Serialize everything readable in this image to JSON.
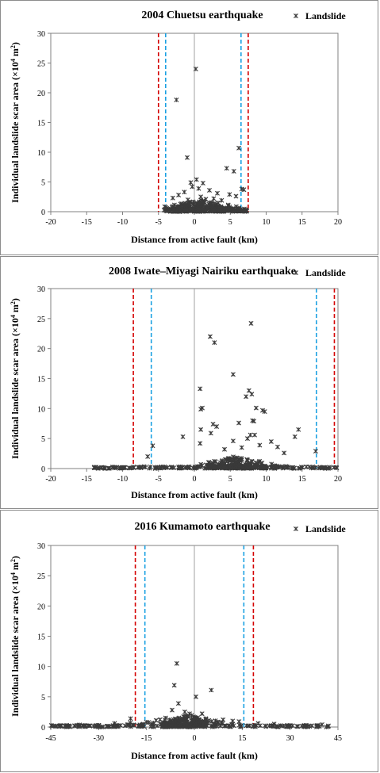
{
  "legend_label": "Landslide",
  "y_label_main": "Individual landslide scar area (×10",
  "y_label_exp": "4",
  "y_label_unit": " m",
  "y_label_exp2": "2",
  "y_label_end": ")",
  "xlabel": "Distance from active fault (km)",
  "colors": {
    "red_line": "#d40000",
    "blue_line": "#1ba1e2",
    "marker": "#3a3a3a",
    "axis": "#808080"
  },
  "chart_data": [
    {
      "type": "scatter",
      "title": "2004 Chuetsu earthquake",
      "xlabel": "Distance from active fault (km)",
      "ylabel": "Individual landslide scar area (×10^4 m^2)",
      "xlim": [
        -20,
        20
      ],
      "ylim": [
        0,
        30
      ],
      "xticks": [
        -20,
        -15,
        -10,
        -5,
        0,
        5,
        10,
        15,
        20
      ],
      "xtick_labels": [
        "-20",
        "-15",
        "-10",
        "-5",
        "0",
        "5",
        "10",
        "15",
        "20"
      ],
      "yticks": [
        0,
        5,
        10,
        15,
        20,
        25,
        30
      ],
      "red_lines": [
        -5,
        7.5
      ],
      "blue_lines": [
        -4,
        6.5
      ],
      "series": [
        {
          "name": "Landslide",
          "points": [
            [
              0.2,
              24.0
            ],
            [
              -2.5,
              18.8
            ],
            [
              6.2,
              10.7
            ],
            [
              -1.0,
              9.1
            ],
            [
              4.5,
              7.3
            ],
            [
              5.5,
              6.8
            ],
            [
              0.3,
              5.4
            ],
            [
              -0.5,
              4.9
            ],
            [
              1.2,
              4.8
            ],
            [
              6.6,
              3.8
            ],
            [
              6.9,
              3.7
            ],
            [
              -0.3,
              4.2
            ],
            [
              0.6,
              3.9
            ],
            [
              2.1,
              3.6
            ],
            [
              -1.4,
              3.3
            ],
            [
              3.2,
              3.1
            ],
            [
              -2.2,
              2.8
            ],
            [
              4.9,
              2.9
            ],
            [
              5.8,
              2.6
            ],
            [
              0.9,
              2.5
            ],
            [
              -3.0,
              2.3
            ],
            [
              2.7,
              2.2
            ],
            [
              1.6,
              2.1
            ],
            [
              -0.9,
              2.0
            ],
            [
              3.8,
              1.9
            ]
          ]
        }
      ]
    },
    {
      "type": "scatter",
      "title": "2008 Iwate–Miyagi Nairiku earthquake",
      "xlabel": "Distance from active fault (km)",
      "ylabel": "Individual landslide scar area (×10^4 m^2)",
      "xlim": [
        -20,
        20
      ],
      "ylim": [
        0,
        30
      ],
      "xticks": [
        -20,
        -15,
        -10,
        -5,
        0,
        5,
        10,
        15,
        20
      ],
      "xtick_labels": [
        "-20",
        "-15",
        "-10",
        "-5",
        "0",
        "5",
        "10",
        "15",
        "20"
      ],
      "yticks": [
        0,
        5,
        10,
        15,
        20,
        25,
        30
      ],
      "red_lines": [
        -8.5,
        19.5
      ],
      "blue_lines": [
        -6,
        17
      ],
      "series": [
        {
          "name": "Landslide",
          "points": [
            [
              7.9,
              24.2
            ],
            [
              2.2,
              22.0
            ],
            [
              2.8,
              21.0
            ],
            [
              5.4,
              15.7
            ],
            [
              0.8,
              13.3
            ],
            [
              7.6,
              13.0
            ],
            [
              8.0,
              12.4
            ],
            [
              7.2,
              12.0
            ],
            [
              1.1,
              10.1
            ],
            [
              0.9,
              9.9
            ],
            [
              9.5,
              9.7
            ],
            [
              8.6,
              10.1
            ],
            [
              9.8,
              9.5
            ],
            [
              8.1,
              8.0
            ],
            [
              8.3,
              7.9
            ],
            [
              6.2,
              7.6
            ],
            [
              2.6,
              7.4
            ],
            [
              3.1,
              7.0
            ],
            [
              0.9,
              6.5
            ],
            [
              14.5,
              6.5
            ],
            [
              2.3,
              5.9
            ],
            [
              8.4,
              5.6
            ],
            [
              7.8,
              5.6
            ],
            [
              14.0,
              5.3
            ],
            [
              -1.6,
              5.3
            ],
            [
              7.4,
              5.0
            ],
            [
              5.4,
              4.6
            ],
            [
              10.7,
              4.5
            ],
            [
              0.8,
              4.2
            ],
            [
              -5.8,
              3.8
            ],
            [
              16.9,
              2.9
            ],
            [
              -6.5,
              2.0
            ],
            [
              12.5,
              2.6
            ],
            [
              4.2,
              3.2
            ],
            [
              6.6,
              3.5
            ],
            [
              9.1,
              3.9
            ],
            [
              11.6,
              3.6
            ]
          ]
        }
      ]
    },
    {
      "type": "scatter",
      "title": "2016 Kumamoto earthquake",
      "xlabel": "Distance from active fault (km)",
      "ylabel": "Individual landslide scar area (×10^4 m^2)",
      "xlim": [
        -45,
        45
      ],
      "ylim": [
        0,
        30
      ],
      "xticks": [
        -45,
        -30,
        -15,
        0,
        15,
        30,
        45
      ],
      "xtick_labels": [
        "-45",
        "-30",
        "-15",
        "0",
        "15",
        "30",
        "45"
      ],
      "yticks": [
        0,
        5,
        10,
        15,
        20,
        25,
        30
      ],
      "red_lines": [
        -18.5,
        18.5
      ],
      "blue_lines": [
        -15.5,
        15.5
      ],
      "series": [
        {
          "name": "Landslide",
          "points": [
            [
              -5.5,
              10.5
            ],
            [
              -6.3,
              6.9
            ],
            [
              5.3,
              6.1
            ],
            [
              -5.0,
              3.9
            ],
            [
              0.5,
              5.0
            ],
            [
              -3.0,
              2.5
            ],
            [
              -1.5,
              2.2
            ],
            [
              -7.0,
              2.8
            ],
            [
              2.4,
              2.2
            ],
            [
              -20.0,
              1.4
            ],
            [
              -15.0,
              0.8
            ],
            [
              -12.0,
              1.1
            ],
            [
              -9.0,
              1.5
            ],
            [
              9.0,
              1.2
            ],
            [
              12.0,
              1.0
            ],
            [
              14.0,
              0.9
            ],
            [
              20.0,
              0.6
            ],
            [
              25.0,
              0.5
            ],
            [
              -25.0,
              0.6
            ],
            [
              -30.0,
              0.3
            ],
            [
              -40.0,
              0.3
            ],
            [
              -44.0,
              0.2
            ],
            [
              40.0,
              0.4
            ],
            [
              42.0,
              0.2
            ],
            [
              35.0,
              0.3
            ]
          ]
        }
      ]
    }
  ]
}
